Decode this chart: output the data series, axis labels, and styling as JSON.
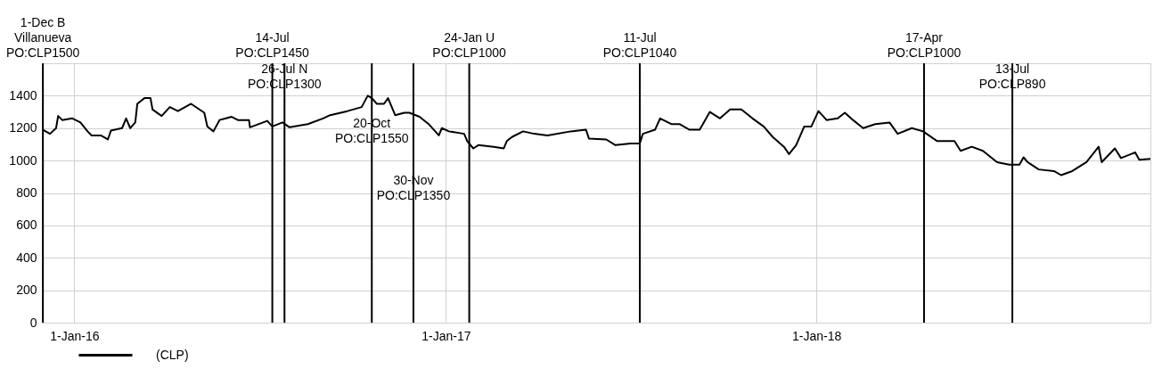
{
  "chart_data": {
    "type": "line",
    "x": [
      "2015-12-01",
      "2015-12-08",
      "2015-12-14",
      "2015-12-16",
      "2015-12-20",
      "2015-12-30",
      "2016-01-07",
      "2016-01-14",
      "2016-01-18",
      "2016-01-27",
      "2016-02-03",
      "2016-02-06",
      "2016-02-17",
      "2016-02-21",
      "2016-02-25",
      "2016-03-01",
      "2016-03-03",
      "2016-03-10",
      "2016-03-16",
      "2016-03-18",
      "2016-03-27",
      "2016-04-04",
      "2016-04-12",
      "2016-04-25",
      "2016-05-08",
      "2016-05-11",
      "2016-05-17",
      "2016-05-23",
      "2016-06-04",
      "2016-06-10",
      "2016-06-21",
      "2016-06-22",
      "2016-07-09",
      "2016-07-14",
      "2016-07-24",
      "2016-07-31",
      "2016-08-18",
      "2016-09-02",
      "2016-09-09",
      "2016-09-26",
      "2016-10-10",
      "2016-10-16",
      "2016-10-20",
      "2016-10-25",
      "2016-11-01",
      "2016-11-05",
      "2016-11-12",
      "2016-11-21",
      "2016-11-26",
      "2016-12-06",
      "2016-12-15",
      "2016-12-25",
      "2016-12-28",
      "2017-01-04",
      "2017-01-19",
      "2017-01-22",
      "2017-01-28",
      "2017-02-02",
      "2017-02-17",
      "2017-02-27",
      "2017-03-02",
      "2017-03-07",
      "2017-03-18",
      "2017-03-29",
      "2017-04-11",
      "2017-05-04",
      "2017-05-19",
      "2017-05-22",
      "2017-06-08",
      "2017-06-17",
      "2017-07-02",
      "2017-07-11",
      "2017-07-14",
      "2017-07-26",
      "2017-07-31",
      "2017-08-11",
      "2017-08-19",
      "2017-08-29",
      "2017-09-08",
      "2017-09-18",
      "2017-09-28",
      "2017-10-08",
      "2017-10-19",
      "2017-10-30",
      "2017-11-10",
      "2017-11-19",
      "2017-11-30",
      "2017-12-05",
      "2017-12-12",
      "2017-12-20",
      "2017-12-27",
      "2018-01-03",
      "2018-01-11",
      "2018-01-22",
      "2018-01-29",
      "2018-02-06",
      "2018-02-16",
      "2018-02-28",
      "2018-03-14",
      "2018-03-22",
      "2018-04-05",
      "2018-04-16",
      "2018-04-30",
      "2018-05-17",
      "2018-05-23",
      "2018-06-03",
      "2018-06-14",
      "2018-06-28",
      "2018-07-10",
      "2018-07-20",
      "2018-07-24",
      "2018-07-28",
      "2018-08-08",
      "2018-08-23",
      "2018-08-30",
      "2018-09-10",
      "2018-09-24",
      "2018-10-06",
      "2018-10-09",
      "2018-10-22",
      "2018-10-28",
      "2018-11-11",
      "2018-11-15",
      "2018-11-26"
    ],
    "series": [
      {
        "name": "(CLP)",
        "color": "#000000",
        "values": [
          1190,
          1165,
          1200,
          1275,
          1250,
          1260,
          1235,
          1180,
          1155,
          1155,
          1130,
          1185,
          1200,
          1260,
          1200,
          1235,
          1350,
          1385,
          1385,
          1315,
          1275,
          1330,
          1305,
          1350,
          1295,
          1210,
          1180,
          1250,
          1270,
          1250,
          1250,
          1205,
          1245,
          1210,
          1235,
          1205,
          1225,
          1260,
          1280,
          1305,
          1330,
          1400,
          1385,
          1350,
          1350,
          1385,
          1280,
          1295,
          1295,
          1270,
          1225,
          1155,
          1200,
          1180,
          1165,
          1120,
          1075,
          1095,
          1085,
          1075,
          1120,
          1145,
          1180,
          1165,
          1155,
          1180,
          1190,
          1135,
          1130,
          1095,
          1105,
          1105,
          1165,
          1190,
          1260,
          1225,
          1225,
          1190,
          1190,
          1300,
          1260,
          1315,
          1315,
          1260,
          1210,
          1145,
          1085,
          1040,
          1095,
          1210,
          1210,
          1305,
          1250,
          1260,
          1295,
          1250,
          1200,
          1225,
          1235,
          1165,
          1200,
          1180,
          1120,
          1120,
          1060,
          1085,
          1060,
          990,
          975,
          975,
          1020,
          990,
          945,
          935,
          910,
          935,
          990,
          1085,
          990,
          1075,
          1015,
          1050,
          1005,
          1010
        ]
      }
    ],
    "xlim": [
      "2015-11-30",
      "2018-11-26"
    ],
    "xticks": [
      {
        "value": "2016-01-01",
        "label": "1-Jan-16"
      },
      {
        "value": "2017-01-01",
        "label": "1-Jan-17"
      },
      {
        "value": "2018-01-01",
        "label": "1-Jan-18"
      }
    ],
    "ylim": [
      0,
      1600
    ],
    "yticks": [
      0,
      200,
      400,
      600,
      800,
      1000,
      1200,
      1400
    ],
    "grid": true,
    "legend": "bottom left",
    "ref_lines": [
      {
        "axis": "x",
        "value": "2015-12-01",
        "label": "1-Dec B\nVillanueva\nPO:CLP1500",
        "color": "#000000"
      },
      {
        "axis": "x",
        "value": "2016-07-14",
        "label": "14-Jul\nPO:CLP1450",
        "color": "#000000"
      },
      {
        "axis": "x",
        "value": "2016-07-26",
        "label": "26-Jul N\nPO:CLP1300",
        "color": "#000000"
      },
      {
        "axis": "x",
        "value": "2016-10-20",
        "label": "20-Oct\nPO:CLP1550",
        "color": "#000000"
      },
      {
        "axis": "x",
        "value": "2016-11-30",
        "label": "30-Nov\nPO:CLP1350",
        "color": "#000000"
      },
      {
        "axis": "x",
        "value": "2017-01-24",
        "label": "24-Jan U\nPO:CLP1000",
        "color": "#000000"
      },
      {
        "axis": "x",
        "value": "2017-07-11",
        "label": "11-Jul\nPO:CLP1040",
        "color": "#000000"
      },
      {
        "axis": "x",
        "value": "2018-04-17",
        "label": "17-Apr\nPO:CLP1000",
        "color": "#000000"
      },
      {
        "axis": "x",
        "value": "2018-07-13",
        "label": "13-Jul\nPO:CLP890",
        "color": "#000000"
      }
    ]
  }
}
